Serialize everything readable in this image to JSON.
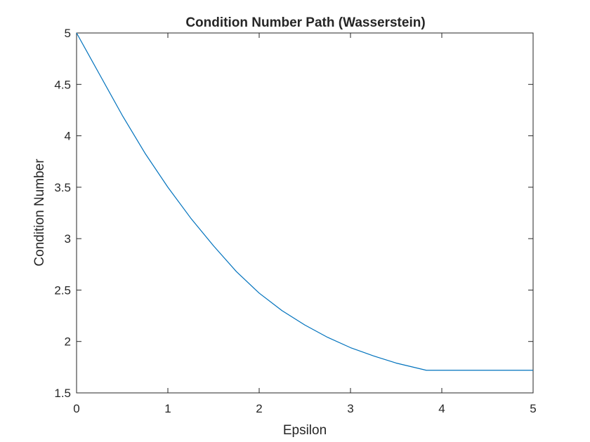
{
  "chart_data": {
    "type": "line",
    "title": "Condition Number Path (Wasserstein)",
    "xlabel": "Epsilon",
    "ylabel": "Condition Number",
    "xlim": [
      0,
      5
    ],
    "ylim": [
      1.5,
      5
    ],
    "xticks": [
      "0",
      "1",
      "2",
      "3",
      "4",
      "5"
    ],
    "yticks": [
      "1.5",
      "2",
      "2.5",
      "3",
      "3.5",
      "4",
      "4.5",
      "5"
    ],
    "grid": false,
    "line_color": "#0072BD",
    "series": [
      {
        "x": [
          0,
          0.25,
          0.5,
          0.75,
          1.0,
          1.25,
          1.5,
          1.75,
          2.0,
          2.25,
          2.5,
          2.75,
          3.0,
          3.25,
          3.5,
          3.83,
          4.0,
          4.5,
          5.0
        ],
        "y": [
          5.0,
          4.6,
          4.2,
          3.83,
          3.5,
          3.2,
          2.93,
          2.68,
          2.47,
          2.3,
          2.16,
          2.04,
          1.94,
          1.86,
          1.79,
          1.72,
          1.72,
          1.72,
          1.72
        ]
      }
    ]
  }
}
